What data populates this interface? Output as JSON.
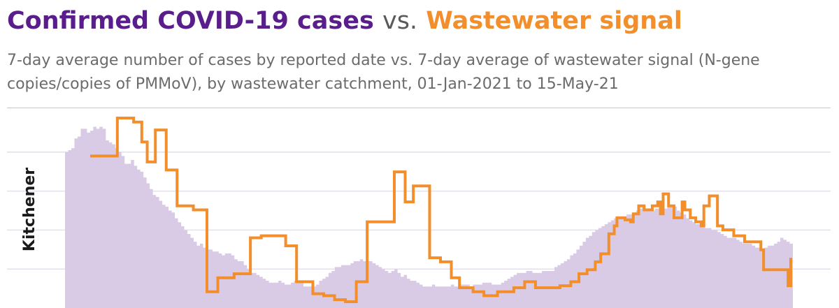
{
  "header": {
    "title_part1": "Confirmed COVID-19 cases",
    "title_part2": "vs.",
    "title_part3": "Wastewater signal",
    "subtitle": "7-day average number of cases by reported date vs. 7-day average of wastewater signal (N-gene copies/copies of PMMoV), by wastewater catchment, 01-Jan-2021 to 15-May-21"
  },
  "colors": {
    "cases_title": "#5a1e8c",
    "wastewater_line": "#f28e2b",
    "cases_area": "#d9cbe6",
    "gridline": "#e6def0"
  },
  "chart_data": {
    "type": "area",
    "title": "Confirmed COVID-19 cases vs. Wastewater signal",
    "row_label": "Kitchener",
    "x_start": "2021-01-01",
    "x_end": "2021-05-15",
    "grid": true,
    "ylim": [
      0,
      100
    ],
    "series": [
      {
        "kind": "cases-area",
        "values": [
          80,
          81,
          82,
          87,
          88,
          92,
          92,
          90,
          91,
          93,
          92,
          93,
          92,
          86,
          85,
          84,
          82,
          80,
          78,
          74,
          74,
          76,
          73,
          71,
          70,
          67,
          64,
          61,
          58,
          57,
          55,
          53,
          52,
          50,
          49,
          46,
          44,
          42,
          40,
          38,
          36,
          34,
          32,
          33,
          31,
          30,
          30,
          29,
          29,
          28,
          27,
          28,
          28,
          27,
          25,
          24,
          24,
          22,
          20,
          18,
          18,
          17,
          16,
          15,
          14,
          13,
          13,
          13,
          14,
          13,
          12,
          12,
          13,
          14,
          13,
          13,
          11,
          11,
          11,
          11,
          12,
          14,
          15,
          16,
          18,
          19,
          21,
          21,
          22,
          22,
          22,
          23,
          24,
          24,
          25,
          24,
          24,
          24,
          23,
          22,
          21,
          20,
          19,
          18,
          19,
          20,
          18,
          16,
          17,
          15,
          14,
          14,
          13,
          12,
          11,
          11,
          11,
          12,
          11,
          11,
          11,
          11,
          11,
          12,
          11,
          11,
          12,
          12,
          12,
          11,
          12,
          12,
          12,
          13,
          13,
          13,
          12,
          12,
          12,
          13,
          14,
          15,
          16,
          17,
          18,
          18,
          18,
          19,
          19,
          18,
          18,
          18,
          19,
          19,
          19,
          19,
          21,
          22,
          23,
          24,
          25,
          27,
          28,
          30,
          32,
          34,
          36,
          37,
          39,
          40,
          41,
          42,
          43,
          44,
          45,
          46,
          47,
          47,
          47,
          48,
          48,
          49,
          50,
          51,
          52,
          51,
          50,
          50,
          51,
          51,
          50,
          51,
          52,
          53,
          52,
          50,
          49,
          48,
          46,
          45,
          44,
          43,
          43,
          42,
          41,
          41,
          40,
          40,
          39,
          38,
          37,
          36,
          36,
          36,
          35,
          34,
          33,
          33,
          33,
          32,
          31,
          31,
          30,
          31,
          32,
          32,
          33,
          34,
          36,
          35,
          34,
          33
        ]
      },
      {
        "kind": "wastewater-line",
        "values": [
          73,
          73,
          73,
          73,
          73,
          73,
          73,
          73,
          73,
          73,
          92,
          92,
          92,
          92,
          92,
          92,
          90,
          90,
          90,
          80,
          80,
          70,
          70,
          70,
          86,
          86,
          86,
          86,
          66,
          66,
          66,
          66,
          48,
          48,
          48,
          48,
          48,
          48,
          46,
          46,
          46,
          46,
          46,
          5,
          5,
          5,
          5,
          12,
          12,
          12,
          12,
          12,
          12,
          14,
          14,
          14,
          14,
          14,
          14,
          32,
          32,
          32,
          32,
          33,
          33,
          33,
          33,
          33,
          33,
          33,
          33,
          33,
          28,
          28,
          28,
          28,
          10,
          10,
          10,
          10,
          10,
          10,
          4,
          4,
          4,
          4,
          3,
          3,
          3,
          3,
          1,
          1,
          1,
          1,
          0,
          0,
          0,
          0,
          10,
          10,
          10,
          10,
          40,
          40,
          40,
          40,
          40,
          40,
          40,
          40,
          40,
          40,
          65,
          65,
          65,
          65,
          50,
          50,
          50,
          58,
          58,
          58,
          58,
          58,
          58,
          22,
          22,
          22,
          22,
          20,
          20,
          20,
          20,
          12,
          12,
          12,
          7,
          7,
          7,
          7,
          7,
          5,
          5,
          5,
          5,
          3,
          3,
          3,
          3,
          3,
          5,
          5,
          5,
          5,
          5,
          5,
          7,
          7,
          7,
          7,
          10,
          10,
          10,
          10,
          7,
          7,
          7,
          7,
          7,
          7,
          7,
          7,
          7,
          8,
          8,
          8,
          8,
          10,
          10,
          10,
          14,
          14,
          14,
          16,
          16,
          16,
          20,
          20,
          24,
          24,
          24,
          34,
          34,
          38,
          42,
          42,
          42,
          41,
          41,
          40,
          44,
          44,
          48,
          48,
          46,
          46,
          46,
          48,
          48,
          50,
          44,
          54,
          54,
          48,
          48,
          42,
          42,
          42,
          50,
          46,
          46,
          42,
          42,
          40,
          40,
          38,
          48,
          48,
          53,
          53,
          53,
          38,
          38,
          36,
          36,
          36,
          36,
          33,
          33,
          33,
          33,
          30,
          30,
          30,
          30,
          30,
          30,
          26,
          16,
          16,
          16,
          16,
          16,
          16,
          16,
          16,
          16,
          8
        ]
      }
    ]
  }
}
